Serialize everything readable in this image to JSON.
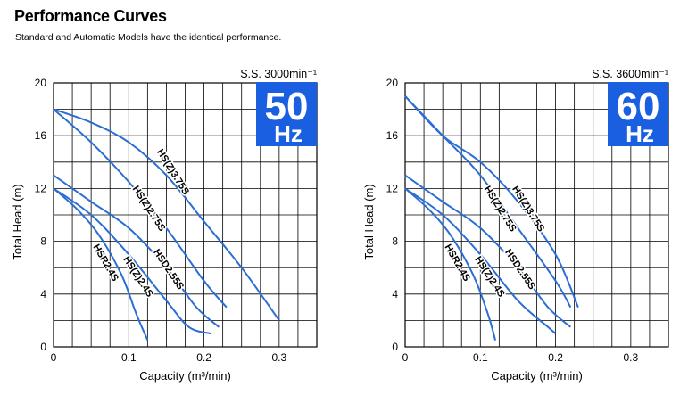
{
  "page": {
    "title": "Performance Curves",
    "subtitle": "Standard and Automatic Models have the identical performance."
  },
  "colors": {
    "curve": "#2a6ed4",
    "badge": "#1a5fe0",
    "grid": "#000000"
  },
  "chart_data": [
    {
      "type": "line",
      "speed_label": "S.S. 3000min⁻¹",
      "freq_number": "50",
      "freq_unit": "Hz",
      "xlabel": "Capacity (m³/min)",
      "ylabel": "Total Head (m)",
      "xlim": [
        0,
        0.35
      ],
      "ylim": [
        0,
        20
      ],
      "x_ticks": [
        "0",
        "0.1",
        "0.2",
        "0.3"
      ],
      "y_ticks": [
        "0",
        "4",
        "8",
        "12",
        "16",
        "20"
      ],
      "grid": true,
      "series": [
        {
          "name": "HS(Z)3.75S",
          "points": [
            [
              0,
              18
            ],
            [
              0.05,
              17
            ],
            [
              0.1,
              15.5
            ],
            [
              0.15,
              13
            ],
            [
              0.2,
              9.5
            ],
            [
              0.25,
              6
            ],
            [
              0.3,
              2
            ]
          ]
        },
        {
          "name": "HS(Z)2.75S",
          "points": [
            [
              0,
              18
            ],
            [
              0.05,
              15.5
            ],
            [
              0.1,
              12.5
            ],
            [
              0.15,
              9
            ],
            [
              0.2,
              5
            ],
            [
              0.23,
              3
            ]
          ]
        },
        {
          "name": "HSD2.55S",
          "points": [
            [
              0,
              13
            ],
            [
              0.05,
              11
            ],
            [
              0.1,
              9
            ],
            [
              0.15,
              6
            ],
            [
              0.19,
              3
            ],
            [
              0.22,
              1.5
            ]
          ]
        },
        {
          "name": "HS(Z)2.4S",
          "points": [
            [
              0,
              12
            ],
            [
              0.05,
              10
            ],
            [
              0.1,
              7
            ],
            [
              0.15,
              3.5
            ],
            [
              0.18,
              1.5
            ],
            [
              0.21,
              1
            ]
          ]
        },
        {
          "name": "HSR2.4S",
          "points": [
            [
              0,
              12
            ],
            [
              0.03,
              10.5
            ],
            [
              0.06,
              8.5
            ],
            [
              0.09,
              5.5
            ],
            [
              0.11,
              2.5
            ],
            [
              0.125,
              0.5
            ]
          ]
        }
      ]
    },
    {
      "type": "line",
      "speed_label": "S.S. 3600min⁻¹",
      "freq_number": "60",
      "freq_unit": "Hz",
      "xlabel": "Capacity (m³/min)",
      "ylabel": "Total Head (m)",
      "xlim": [
        0,
        0.35
      ],
      "ylim": [
        0,
        20
      ],
      "x_ticks": [
        "0",
        "0.1",
        "0.2",
        "0.3"
      ],
      "y_ticks": [
        "0",
        "4",
        "8",
        "12",
        "16",
        "20"
      ],
      "grid": true,
      "series": [
        {
          "name": "HS(Z)3.75S",
          "points": [
            [
              0,
              19
            ],
            [
              0.05,
              16
            ],
            [
              0.1,
              14
            ],
            [
              0.15,
              11
            ],
            [
              0.2,
              7
            ],
            [
              0.23,
              3
            ]
          ]
        },
        {
          "name": "HS(Z)2.75S",
          "points": [
            [
              0,
              19
            ],
            [
              0.05,
              16
            ],
            [
              0.1,
              13
            ],
            [
              0.15,
              9
            ],
            [
              0.2,
              5
            ],
            [
              0.22,
              3
            ]
          ]
        },
        {
          "name": "HSD2.55S",
          "points": [
            [
              0,
              13
            ],
            [
              0.05,
              11
            ],
            [
              0.1,
              9
            ],
            [
              0.15,
              6
            ],
            [
              0.19,
              3
            ],
            [
              0.22,
              1.5
            ]
          ]
        },
        {
          "name": "HS(Z)2.4S",
          "points": [
            [
              0,
              12
            ],
            [
              0.05,
              10
            ],
            [
              0.1,
              7
            ],
            [
              0.15,
              3.5
            ],
            [
              0.19,
              1.5
            ],
            [
              0.2,
              1
            ]
          ]
        },
        {
          "name": "HSR2.4S",
          "points": [
            [
              0,
              12
            ],
            [
              0.03,
              10.5
            ],
            [
              0.06,
              8.5
            ],
            [
              0.09,
              5.5
            ],
            [
              0.11,
              2.5
            ],
            [
              0.12,
              0.5
            ]
          ]
        }
      ]
    }
  ]
}
